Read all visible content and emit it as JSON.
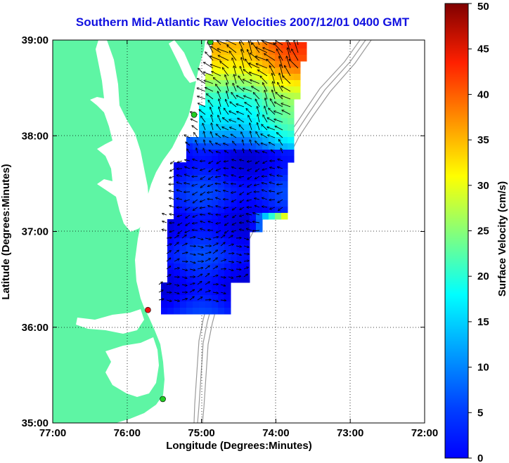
{
  "title": "Southern Mid-Atlantic Raw Velocities 2007/12/01 0400 GMT",
  "x_axis": {
    "label": "Longitude (Degrees:Minutes)",
    "ticks": [
      "77:00",
      "76:00",
      "75:00",
      "74:00",
      "73:00",
      "72:00"
    ],
    "range": [
      -77,
      -72
    ]
  },
  "y_axis": {
    "label": "Latitude (Degrees:Minutes)",
    "ticks": [
      "39:00",
      "38:00",
      "37:00",
      "36:00",
      "35:00"
    ],
    "range": [
      35,
      39
    ]
  },
  "colorbar": {
    "label": "Surface Velocity (cm/s)",
    "ticks": [
      "50",
      "45",
      "40",
      "35",
      "30",
      "25",
      "20",
      "15",
      "10",
      "5",
      "0"
    ],
    "range": [
      0,
      50
    ]
  },
  "grid": "dotted",
  "colors": {
    "land": "#5ef5a4",
    "title": "#1010e0",
    "bathymetry": "#9a9a9a",
    "station_active": "#22cc22",
    "station_alert": "#ee1111"
  },
  "stations": [
    {
      "status": "active",
      "lon": -74.88,
      "lat": 38.98
    },
    {
      "status": "active",
      "lon": -75.1,
      "lat": 38.22
    },
    {
      "status": "alert",
      "lon": -75.72,
      "lat": 36.18
    },
    {
      "status": "active",
      "lon": -75.52,
      "lat": 35.25
    }
  ]
}
